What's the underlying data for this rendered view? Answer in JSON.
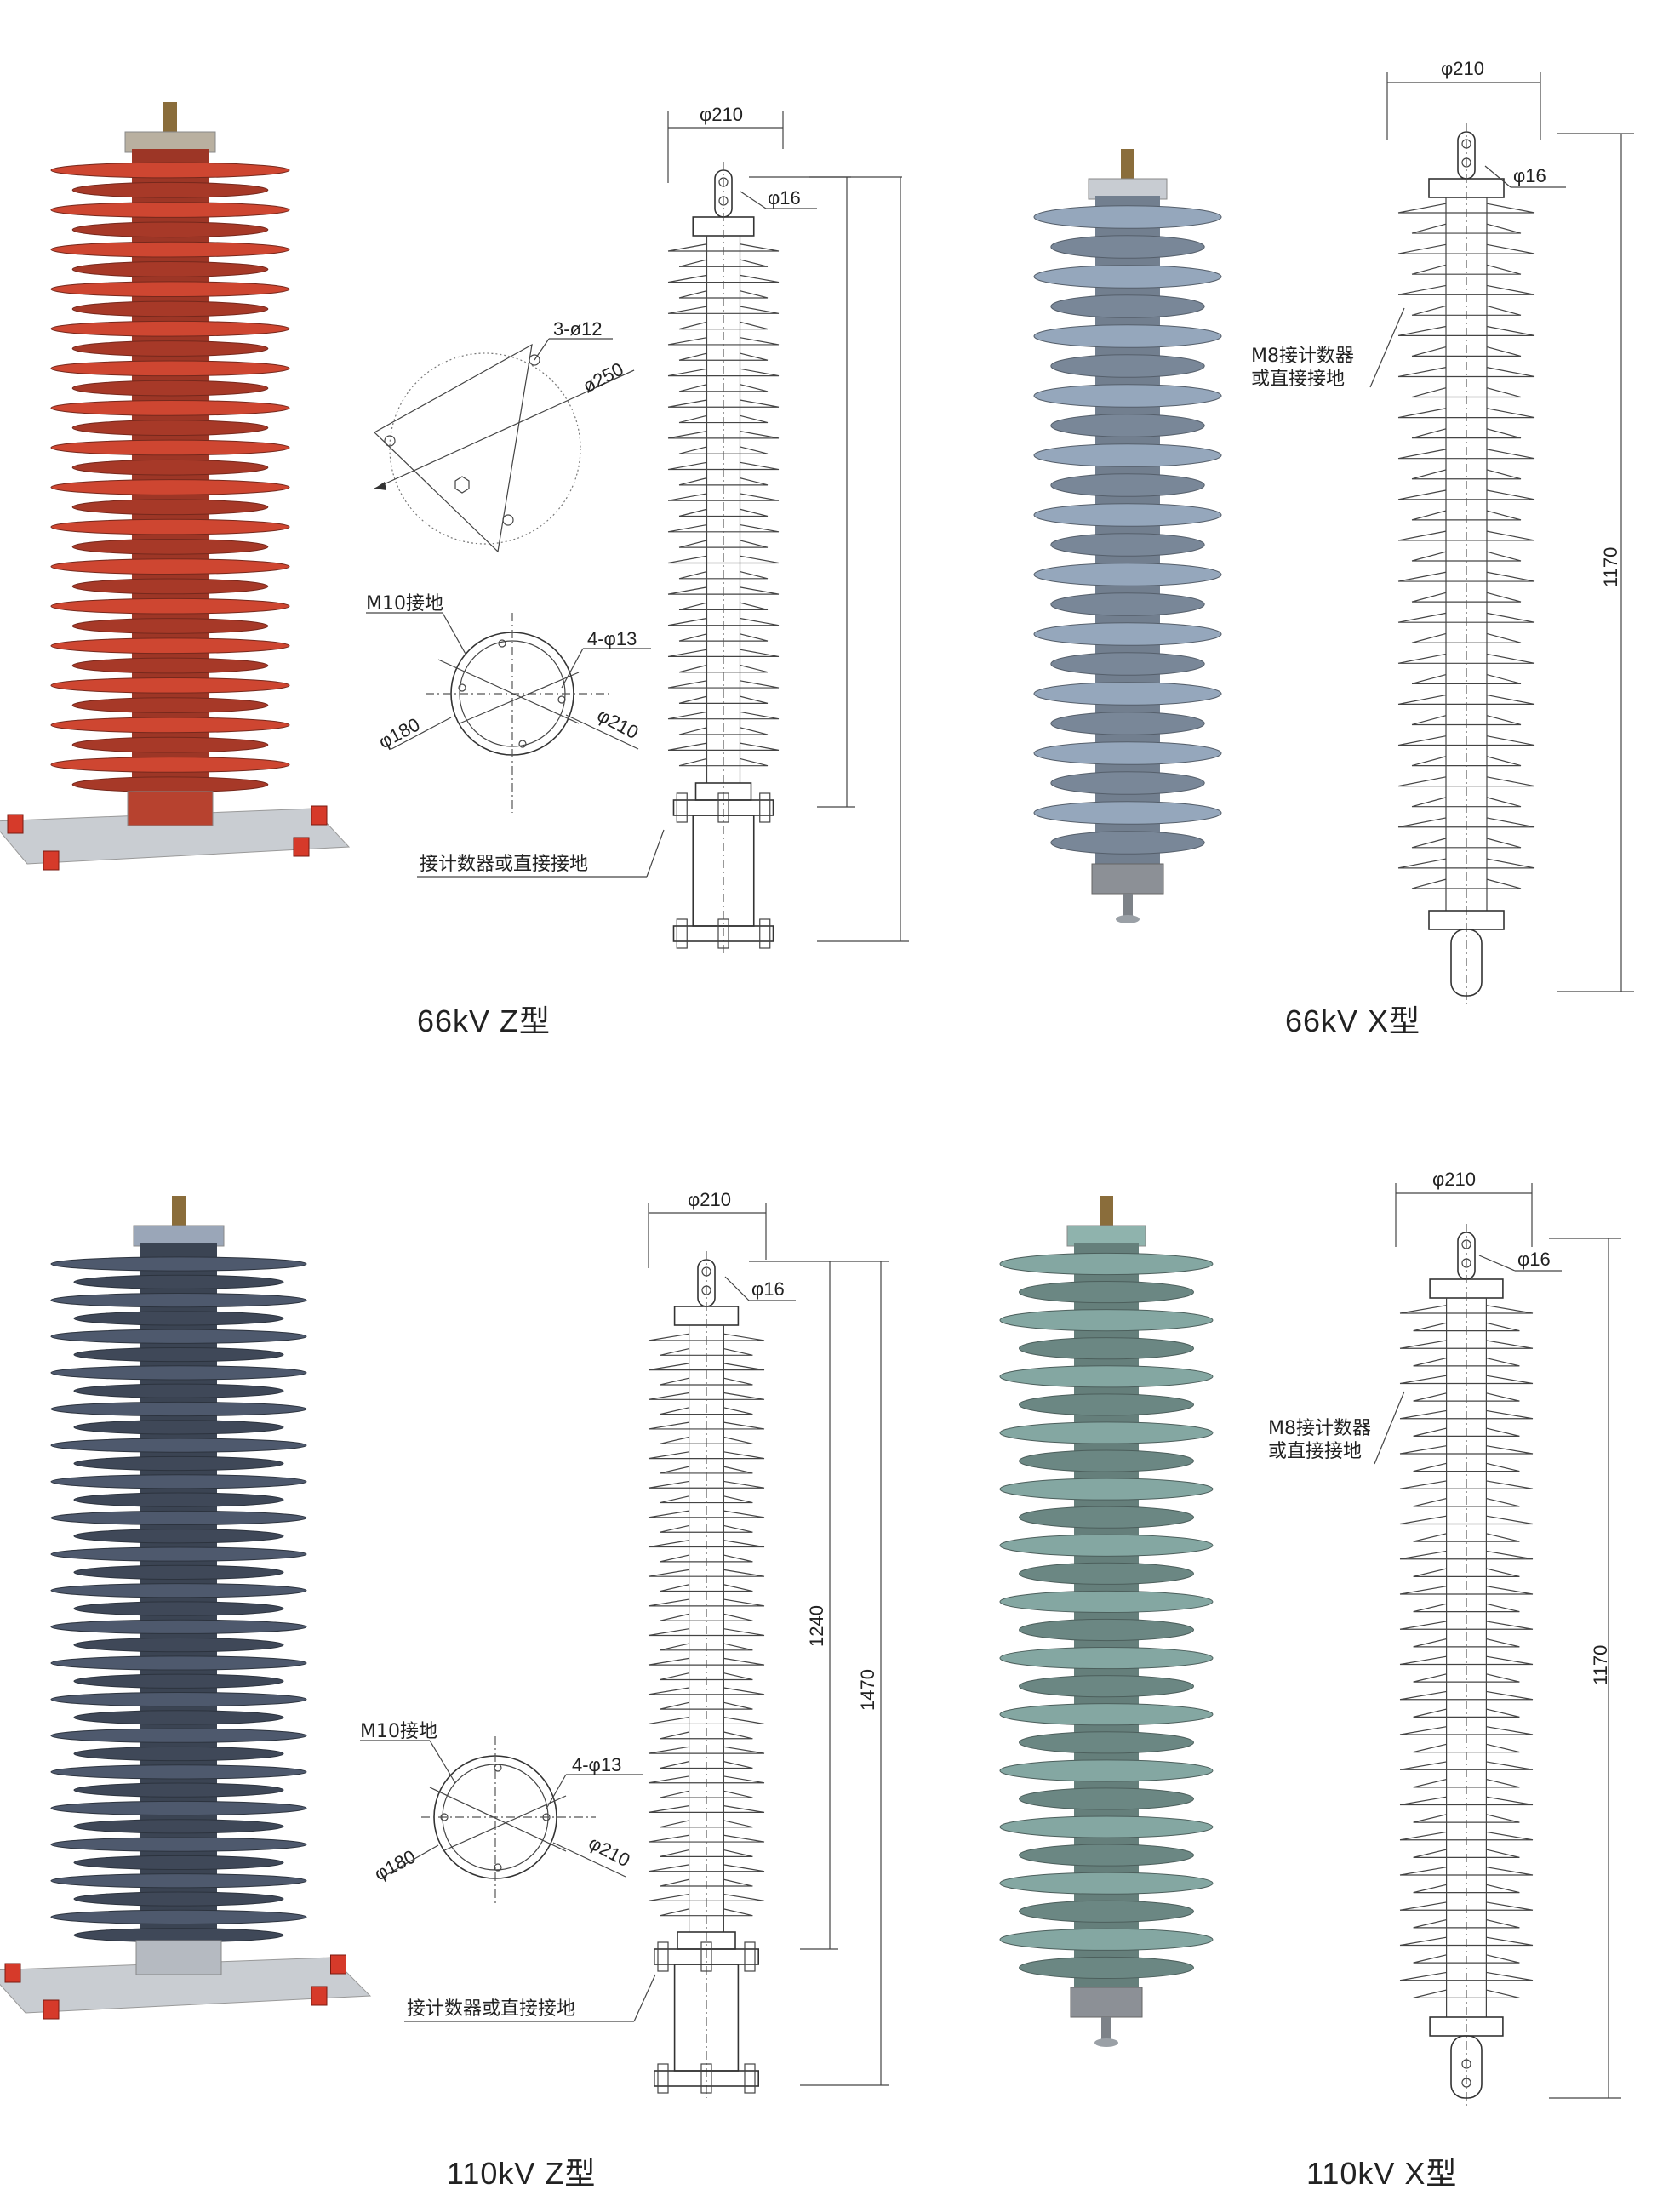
{
  "panels": [
    {
      "id": "p66z",
      "caption": "66kV  Z型",
      "photo_color": "#c4432f",
      "drawing_labels": {
        "dia_top": "φ210",
        "dia_terminal": "φ16",
        "base_holes": "3-ø12",
        "base_dia": "ø250",
        "ground_screw": "M10接地",
        "flange_holes": "4-φ13",
        "flange_inner": "φ180",
        "flange_outer": "φ210",
        "counter_note": "接计数器或直接接地"
      }
    },
    {
      "id": "p66x",
      "caption": "66kV  X型",
      "photo_color": "#8e9fb3",
      "drawing_labels": {
        "dia_top": "φ210",
        "dia_terminal": "φ16",
        "counter_note_1": "M8接计数器",
        "counter_note_2": "或直接接地",
        "height": "1170"
      }
    },
    {
      "id": "p110z",
      "caption": "110kV  Z型",
      "photo_color": "#4a5568",
      "drawing_labels": {
        "dia_top": "φ210",
        "dia_terminal": "φ16",
        "height_inner": "1240",
        "height_outer": "1470",
        "ground_screw": "M10接地",
        "flange_holes": "4-φ13",
        "flange_inner": "φ180",
        "flange_outer": "φ210",
        "counter_note": "接计数器或直接接地"
      }
    },
    {
      "id": "p110x",
      "caption": "110kV  X型",
      "photo_color": "#7e9f9a",
      "drawing_labels": {
        "dia_top": "φ210",
        "dia_terminal": "φ16",
        "counter_note_1": "M8接计数器",
        "counter_note_2": "或直接接地",
        "height": "1170"
      }
    }
  ],
  "colors": {
    "line": "#333333",
    "red_shed": "#c4432f",
    "red_dark": "#8f2a1c",
    "gray_blue_shed": "#8e9fb3",
    "dark_shed": "#4a5568",
    "teal_shed": "#7e9f9a",
    "metal": "#b9bec4",
    "base_plate": "#c9cdd2",
    "red_insulator_cap": "#d63a2a"
  }
}
